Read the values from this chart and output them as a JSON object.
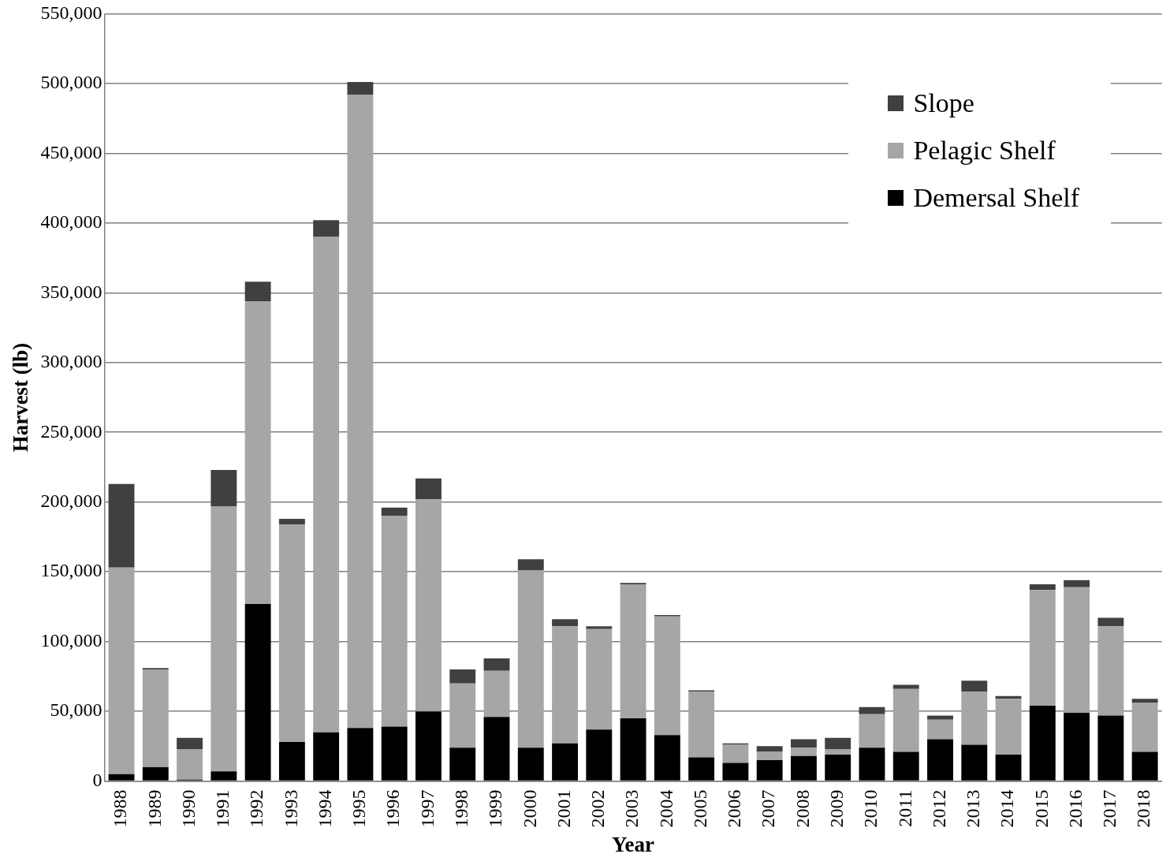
{
  "chart_data": {
    "type": "bar",
    "stacked": true,
    "xlabel": "Year",
    "ylabel": "Harvest (lb)",
    "categories": [
      "1988",
      "1989",
      "1990",
      "1991",
      "1992",
      "1993",
      "1994",
      "1995",
      "1996",
      "1997",
      "1998",
      "1999",
      "2000",
      "2001",
      "2002",
      "2003",
      "2004",
      "2005",
      "2006",
      "2007",
      "2008",
      "2009",
      "2010",
      "2011",
      "2012",
      "2013",
      "2014",
      "2015",
      "2016",
      "2017",
      "2018"
    ],
    "series": [
      {
        "name": "Demersal Shelf",
        "color": "#000000",
        "values": [
          5000,
          10000,
          1000,
          7000,
          127000,
          28000,
          35000,
          38000,
          39000,
          50000,
          24000,
          46000,
          24000,
          27000,
          37000,
          45000,
          33000,
          17000,
          13000,
          15000,
          18000,
          19000,
          24000,
          21000,
          30000,
          26000,
          19000,
          54000,
          49000,
          47000,
          21000
        ]
      },
      {
        "name": "Pelagic Shelf",
        "color": "#a6a6a6",
        "values": [
          148000,
          70000,
          22000,
          190000,
          217000,
          156000,
          355000,
          454000,
          151000,
          152000,
          46000,
          33000,
          127000,
          84000,
          72000,
          96000,
          85000,
          47000,
          13000,
          6000,
          6000,
          4000,
          24000,
          45000,
          14000,
          38000,
          40000,
          83000,
          90000,
          64000,
          35000
        ]
      },
      {
        "name": "Slope",
        "color": "#404040",
        "values": [
          60000,
          1000,
          8000,
          26000,
          14000,
          4000,
          12000,
          9000,
          6000,
          15000,
          10000,
          9000,
          8000,
          5000,
          2000,
          1000,
          1000,
          1000,
          1000,
          4000,
          6000,
          8000,
          5000,
          3000,
          3000,
          8000,
          2000,
          4000,
          5000,
          6000,
          3000
        ]
      }
    ],
    "ylim": [
      0,
      550000
    ],
    "yticks": [
      0,
      {
        "value": 50000,
        "label": "50,000"
      },
      {
        "value": 100000,
        "label": "100,000"
      },
      {
        "value": 150000,
        "label": "150,000"
      },
      {
        "value": 200000,
        "label": "200,000"
      },
      {
        "value": 250000,
        "label": "250,000"
      },
      {
        "value": 300000,
        "label": "300,000"
      },
      {
        "value": 350000,
        "label": "350,000"
      },
      {
        "value": 400000,
        "label": "400,000"
      },
      {
        "value": 450000,
        "label": "450,000"
      },
      {
        "value": 500000,
        "label": "500,000"
      },
      {
        "value": 550000,
        "label": "550,000"
      }
    ],
    "grid": "y",
    "legend": "top right"
  }
}
